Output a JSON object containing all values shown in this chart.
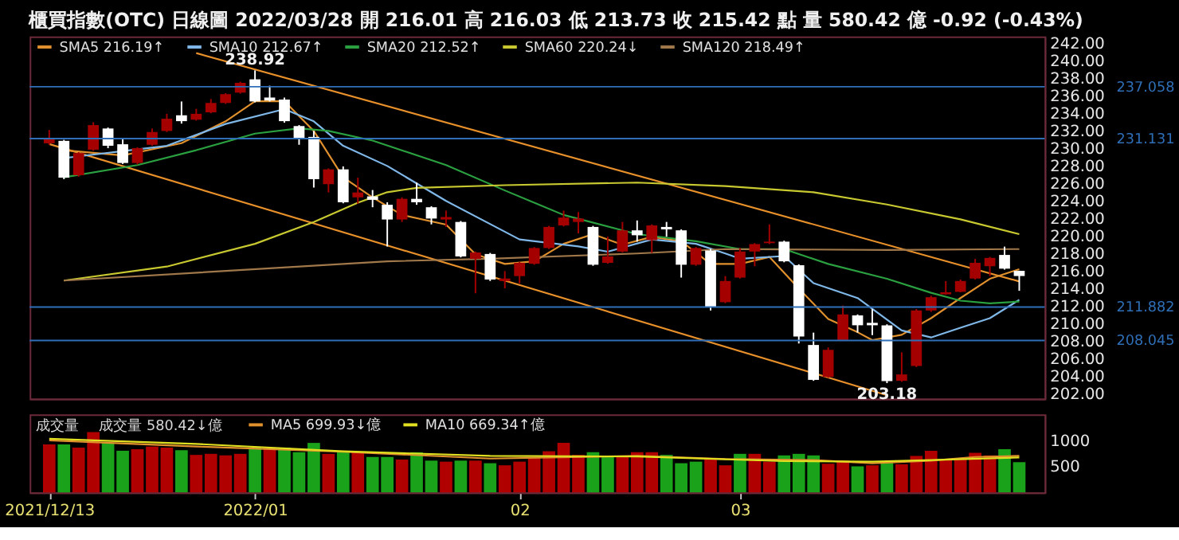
{
  "chart_data": [
    {
      "type": "candlestick",
      "title": "櫃買指數(OTC)  日線圖  2022/03/28  開 216.01  高 216.03  低 213.73  收 215.42 點  量 580.42 億  -0.92 (-0.43%)",
      "categories": [
        "2021/12/13",
        null,
        null,
        null,
        null,
        null,
        null,
        null,
        null,
        null,
        null,
        null,
        null,
        null,
        "2022/01",
        null,
        null,
        null,
        null,
        null,
        null,
        null,
        null,
        null,
        null,
        null,
        null,
        null,
        null,
        null,
        null,
        null,
        "02",
        null,
        null,
        null,
        null,
        null,
        null,
        null,
        null,
        null,
        null,
        null,
        null,
        null,
        null,
        "03",
        null,
        null,
        null,
        null,
        null,
        null,
        null,
        null,
        null,
        null,
        null,
        null,
        null,
        null,
        null,
        null,
        null,
        null,
        null
      ],
      "ohlc": [
        [
          230.59,
          232.11,
          230.42,
          231.15
        ],
        [
          230.87,
          230.98,
          226.49,
          226.66
        ],
        [
          226.94,
          229.58,
          226.77,
          229.47
        ],
        [
          229.86,
          233.0,
          229.75,
          232.67
        ],
        [
          232.28,
          232.39,
          230.03,
          230.31
        ],
        [
          230.48,
          231.15,
          228.23,
          228.34
        ],
        [
          228.34,
          230.14,
          228.17,
          230.03
        ],
        [
          230.42,
          232.28,
          230.31,
          231.88
        ],
        [
          232.0,
          233.96,
          231.88,
          233.4
        ],
        [
          233.79,
          235.37,
          232.84,
          233.12
        ],
        [
          233.29,
          234.53,
          233.18,
          233.96
        ],
        [
          234.13,
          235.65,
          234.02,
          235.2
        ],
        [
          235.2,
          236.32,
          235.09,
          236.21
        ],
        [
          236.38,
          237.62,
          236.27,
          237.5
        ],
        [
          237.9,
          238.92,
          235.26,
          235.37
        ],
        [
          235.82,
          237.17,
          235.37,
          235.48
        ],
        [
          235.59,
          235.82,
          232.95,
          233.12
        ],
        [
          232.56,
          232.67,
          230.42,
          231.15
        ],
        [
          231.32,
          232.0,
          225.53,
          226.49
        ],
        [
          225.92,
          227.72,
          224.97,
          227.61
        ],
        [
          227.61,
          227.95,
          223.73,
          223.85
        ],
        [
          224.41,
          226.66,
          223.68,
          224.97
        ],
        [
          224.52,
          225.25,
          223.28,
          224.13
        ],
        [
          223.56,
          223.85,
          218.79,
          221.88
        ],
        [
          221.88,
          224.41,
          221.6,
          224.24
        ],
        [
          224.24,
          226.09,
          223.56,
          223.85
        ],
        [
          223.28,
          223.4,
          221.32,
          221.99
        ],
        [
          221.88,
          222.89,
          221.03,
          222.16
        ],
        [
          221.6,
          221.71,
          217.55,
          217.66
        ],
        [
          217.38,
          218.22,
          213.45,
          218.11
        ],
        [
          217.94,
          218.06,
          214.85,
          215.02
        ],
        [
          214.85,
          215.98,
          214.01,
          215.13
        ],
        [
          215.41,
          217.04,
          214.57,
          216.93
        ],
        [
          216.82,
          218.73,
          216.71,
          218.62
        ],
        [
          218.62,
          221.15,
          218.5,
          221.03
        ],
        [
          221.2,
          222.89,
          221.09,
          222.1
        ],
        [
          221.6,
          222.72,
          220.3,
          221.99
        ],
        [
          221.03,
          221.15,
          216.59,
          216.71
        ],
        [
          216.93,
          219.91,
          216.82,
          217.66
        ],
        [
          218.22,
          221.6,
          218.11,
          220.64
        ],
        [
          220.64,
          221.77,
          219.35,
          220.08
        ],
        [
          219.52,
          221.32,
          218.06,
          221.2
        ],
        [
          221.03,
          221.6,
          219.91,
          220.75
        ],
        [
          220.64,
          220.75,
          215.24,
          216.71
        ],
        [
          216.71,
          218.73,
          216.59,
          218.62
        ],
        [
          218.34,
          218.5,
          211.48,
          211.87
        ],
        [
          212.43,
          215.41,
          212.32,
          214.85
        ],
        [
          215.24,
          218.62,
          215.13,
          218.22
        ],
        [
          218.22,
          219.18,
          216.54,
          219.07
        ],
        [
          219.18,
          221.32,
          219.07,
          219.35
        ],
        [
          219.35,
          219.46,
          216.99,
          217.1
        ],
        [
          216.65,
          216.76,
          207.71,
          208.5
        ],
        [
          207.54,
          208.95,
          203.44,
          203.55
        ],
        [
          203.89,
          207.26,
          203.78,
          206.98
        ],
        [
          208.11,
          212.04,
          208.0,
          211.03
        ],
        [
          210.92,
          211.03,
          208.95,
          209.79
        ],
        [
          210.07,
          211.65,
          208.67,
          209.79
        ],
        [
          209.79,
          209.9,
          203.18,
          203.4
        ],
        [
          203.44,
          206.7,
          203.33,
          204.17
        ],
        [
          205.13,
          211.65,
          205.01,
          211.48
        ],
        [
          211.48,
          213.17,
          211.31,
          213.0
        ],
        [
          213.33,
          214.85,
          213.28,
          213.56
        ],
        [
          213.61,
          215.02,
          213.56,
          214.85
        ],
        [
          215.13,
          217.38,
          215.02,
          216.93
        ],
        [
          216.54,
          217.6,
          215.41,
          217.49
        ],
        [
          217.83,
          218.78,
          216.15,
          216.26
        ],
        [
          216.01,
          216.03,
          213.73,
          215.42
        ]
      ],
      "colors": [
        "#a40000",
        "#ffffff",
        "#a40000",
        "#a40000",
        "#ffffff",
        "#ffffff",
        "#a40000",
        "#a40000",
        "#a40000",
        "#ffffff",
        "#a40000",
        "#a40000",
        "#a40000",
        "#a40000",
        "#ffffff",
        "#ffffff",
        "#ffffff",
        "#ffffff",
        "#ffffff",
        "#a40000",
        "#ffffff",
        "#a40000",
        "#ffffff",
        "#ffffff",
        "#a40000",
        "#ffffff",
        "#ffffff",
        "#a40000",
        "#ffffff",
        "#a40000",
        "#ffffff",
        "#a40000",
        "#a40000",
        "#a40000",
        "#a40000",
        "#a40000",
        "#a40000",
        "#ffffff",
        "#a40000",
        "#a40000",
        "#ffffff",
        "#a40000",
        "#ffffff",
        "#ffffff",
        "#a40000",
        "#ffffff",
        "#a40000",
        "#a40000",
        "#a40000",
        "#a40000",
        "#ffffff",
        "#ffffff",
        "#ffffff",
        "#a40000",
        "#a40000",
        "#ffffff",
        "#ffffff",
        "#ffffff",
        "#a40000",
        "#a40000",
        "#a40000",
        "#a40000",
        "#a40000",
        "#a40000",
        "#a40000",
        "#ffffff",
        "#ffffff"
      ],
      "series": [
        {
          "name": "SMA5 216.19↑",
          "color": "#e0902c",
          "type": "line",
          "values": [
            null,
            229.8,
            null,
            null,
            null,
            229.2,
            null,
            null,
            null,
            230.6,
            null,
            null,
            233.1,
            null,
            235.4,
            null,
            235.4,
            null,
            232.0,
            null,
            226.7,
            null,
            224.4,
            null,
            222.4,
            null,
            null,
            221.3,
            null,
            217.9,
            null,
            216.8,
            null,
            217.1,
            null,
            219.1,
            null,
            220.2,
            null,
            219.0,
            null,
            219.9,
            null,
            219.4,
            null,
            216.8,
            null,
            216.8,
            null,
            217.6,
            null,
            214.0,
            null,
            210.5,
            null,
            209.0,
            208.1,
            null,
            208.7,
            null,
            210.6,
            null,
            212.9,
            null,
            215.1,
            null,
            216.2
          ]
        },
        {
          "name": "SMA10 212.67↑",
          "color": "#7fb8e8",
          "type": "line",
          "values": [
            null,
            228.9,
            null,
            null,
            null,
            null,
            null,
            null,
            230.3,
            null,
            null,
            null,
            232.8,
            null,
            null,
            null,
            234.5,
            null,
            233.1,
            null,
            230.3,
            null,
            null,
            228.0,
            null,
            null,
            null,
            224.0,
            null,
            null,
            null,
            null,
            219.6,
            null,
            null,
            null,
            218.8,
            null,
            218.2,
            null,
            null,
            219.6,
            null,
            null,
            219.1,
            null,
            218.0,
            217.4,
            null,
            null,
            217.7,
            null,
            214.6,
            null,
            null,
            212.9,
            null,
            null,
            209.2,
            null,
            208.4,
            null,
            209.5,
            null,
            210.6,
            null,
            212.7
          ]
        },
        {
          "name": "SMA20 212.52↑",
          "color": "#2aa040",
          "type": "line",
          "values": [
            null,
            226.7,
            null,
            null,
            null,
            null,
            228.1,
            null,
            null,
            null,
            229.8,
            null,
            null,
            null,
            231.7,
            null,
            null,
            232.3,
            null,
            232.0,
            null,
            null,
            230.9,
            null,
            null,
            null,
            null,
            228.1,
            null,
            null,
            null,
            225.2,
            null,
            null,
            null,
            222.4,
            null,
            null,
            null,
            null,
            220.2,
            null,
            null,
            null,
            219.4,
            null,
            null,
            218.5,
            null,
            null,
            218.5,
            null,
            null,
            216.8,
            null,
            null,
            null,
            215.1,
            null,
            null,
            213.5,
            null,
            212.6,
            null,
            212.3,
            null,
            212.5
          ]
        },
        {
          "name": "SMA60 220.24↓",
          "color": "#c8c830",
          "type": "line",
          "values": [
            null,
            214.9,
            null,
            null,
            null,
            null,
            null,
            null,
            216.5,
            null,
            null,
            null,
            null,
            null,
            219.1,
            null,
            null,
            null,
            221.6,
            null,
            null,
            223.8,
            null,
            225.0,
            null,
            225.5,
            null,
            null,
            null,
            null,
            null,
            225.8,
            null,
            null,
            null,
            null,
            null,
            null,
            null,
            null,
            226.1,
            null,
            null,
            null,
            null,
            null,
            225.7,
            null,
            null,
            null,
            null,
            null,
            225.0,
            null,
            null,
            null,
            null,
            223.6,
            null,
            null,
            null,
            null,
            221.9,
            null,
            null,
            null,
            220.2
          ]
        },
        {
          "name": "SMA120 218.49↑",
          "color": "#a0784a",
          "type": "line",
          "values": [
            null,
            214.9,
            null,
            null,
            null,
            null,
            null,
            null,
            null,
            null,
            null,
            null,
            null,
            null,
            null,
            null,
            null,
            null,
            null,
            null,
            null,
            null,
            null,
            217.1,
            null,
            null,
            null,
            null,
            null,
            null,
            217.4,
            null,
            null,
            null,
            null,
            null,
            null,
            null,
            null,
            null,
            218.0,
            null,
            null,
            null,
            null,
            null,
            218.5,
            null,
            null,
            null,
            null,
            null,
            null,
            null,
            null,
            null,
            null,
            218.4,
            null,
            null,
            null,
            null,
            null,
            null,
            null,
            null,
            218.5
          ]
        },
        {
          "color": "#e8902a",
          "type": "line",
          "values": [
            null,
            null,
            null,
            null,
            null,
            null,
            null,
            null,
            null,
            null,
            240.9,
            null,
            null,
            null,
            null,
            null,
            null,
            null,
            null,
            null,
            null,
            null,
            null,
            null,
            null,
            null,
            null,
            null,
            null,
            null,
            null,
            null,
            null,
            null,
            null,
            null,
            null,
            null,
            null,
            null,
            null,
            null,
            null,
            null,
            null,
            null,
            null,
            null,
            null,
            null,
            null,
            null,
            null,
            null,
            null,
            null,
            null,
            null,
            null,
            null,
            null,
            null,
            null,
            null,
            null,
            null,
            214.8
          ]
        },
        {
          "color": "#e8902a",
          "type": "line",
          "values": [
            230.5,
            null,
            null,
            null,
            null,
            null,
            null,
            null,
            null,
            null,
            null,
            null,
            null,
            null,
            null,
            null,
            null,
            null,
            null,
            null,
            null,
            null,
            null,
            null,
            null,
            null,
            null,
            null,
            null,
            null,
            null,
            null,
            null,
            null,
            null,
            null,
            null,
            null,
            null,
            null,
            null,
            null,
            null,
            null,
            null,
            null,
            null,
            null,
            null,
            null,
            null,
            null,
            null,
            null,
            null,
            null,
            null,
            201.8,
            null,
            null,
            null,
            null,
            null,
            null,
            null,
            null,
            null
          ]
        }
      ],
      "ref_lines": [
        {
          "axis": "y",
          "value": 237.058,
          "label": "237.058",
          "color": "#2f6fb8"
        },
        {
          "axis": "y",
          "value": 231.131,
          "label": "231.131",
          "color": "#2f6fb8"
        },
        {
          "axis": "y",
          "value": 211.882,
          "label": "211.882",
          "color": "#2f6fb8"
        },
        {
          "axis": "y",
          "value": 208.045,
          "label": "208.045",
          "color": "#2f6fb8"
        }
      ],
      "annotations": [
        {
          "text": "238.92",
          "y": 238.92
        },
        {
          "text": "203.18",
          "y": 203.18
        }
      ],
      "ylim": [
        201.4,
        242.8
      ],
      "yticks": [
        {
          "value": 202,
          "label": "202.00"
        },
        {
          "value": 204,
          "label": "204.00"
        },
        {
          "value": 206,
          "label": "206.00"
        },
        {
          "value": 208,
          "label": "208.00"
        },
        {
          "value": 210,
          "label": "210.00"
        },
        {
          "value": 212,
          "label": "212.00"
        },
        {
          "value": 214,
          "label": "214.00"
        },
        {
          "value": 216,
          "label": "216.00"
        },
        {
          "value": 218,
          "label": "218.00"
        },
        {
          "value": 220,
          "label": "220.00"
        },
        {
          "value": 222,
          "label": "222.00"
        },
        {
          "value": 224,
          "label": "224.00"
        },
        {
          "value": 226,
          "label": "226.00"
        },
        {
          "value": 228,
          "label": "228.00"
        },
        {
          "value": 230,
          "label": "230.00"
        },
        {
          "value": 232,
          "label": "232.00"
        },
        {
          "value": 234,
          "label": "234.00"
        },
        {
          "value": 236,
          "label": "236.00"
        },
        {
          "value": 238,
          "label": "238.00"
        },
        {
          "value": 240,
          "label": "240.00"
        },
        {
          "value": 242,
          "label": "242.00"
        }
      ],
      "tick_labels": "y",
      "legend": "top left"
    },
    {
      "type": "bar",
      "title": "成交量",
      "categories": [
        "2021/12/13",
        null,
        null,
        null,
        null,
        null,
        null,
        null,
        null,
        null,
        null,
        null,
        null,
        null,
        "2022/01",
        null,
        null,
        null,
        null,
        null,
        null,
        null,
        null,
        null,
        null,
        null,
        null,
        null,
        null,
        null,
        null,
        null,
        "02",
        null,
        null,
        null,
        null,
        null,
        null,
        null,
        null,
        null,
        null,
        null,
        null,
        null,
        null,
        "03",
        null,
        null,
        null,
        null,
        null,
        null,
        null,
        null,
        null,
        null,
        null,
        null,
        null,
        null,
        null,
        null,
        null,
        null,
        null
      ],
      "series": [
        {
          "name": "成交量 580.42↓億",
          "type": "bar",
          "values": [
            920,
            920,
            860,
            1160,
            950,
            800,
            830,
            880,
            860,
            810,
            720,
            740,
            710,
            740,
            860,
            860,
            860,
            770,
            950,
            740,
            770,
            770,
            680,
            680,
            630,
            770,
            610,
            590,
            610,
            610,
            560,
            520,
            590,
            670,
            790,
            950,
            720,
            770,
            680,
            680,
            770,
            770,
            720,
            560,
            590,
            630,
            520,
            740,
            740,
            590,
            710,
            740,
            710,
            550,
            610,
            500,
            520,
            580,
            540,
            700,
            800,
            630,
            630,
            760,
            710,
            830,
            580
          ],
          "colors": [
            "#b00000",
            "#1aa31a",
            "#b00000",
            "#b00000",
            "#1aa31a",
            "#1aa31a",
            "#b00000",
            "#b00000",
            "#b00000",
            "#1aa31a",
            "#b00000",
            "#b00000",
            "#b00000",
            "#b00000",
            "#1aa31a",
            "#b00000",
            "#1aa31a",
            "#1aa31a",
            "#1aa31a",
            "#b00000",
            "#1aa31a",
            "#b00000",
            "#1aa31a",
            "#1aa31a",
            "#b00000",
            "#1aa31a",
            "#1aa31a",
            "#b00000",
            "#1aa31a",
            "#b00000",
            "#1aa31a",
            "#b00000",
            "#b00000",
            "#b00000",
            "#b00000",
            "#b00000",
            "#b00000",
            "#1aa31a",
            "#1aa31a",
            "#b00000",
            "#b00000",
            "#b00000",
            "#1aa31a",
            "#1aa31a",
            "#1aa31a",
            "#b00000",
            "#b00000",
            "#1aa31a",
            "#b00000",
            "#b00000",
            "#1aa31a",
            "#1aa31a",
            "#1aa31a",
            "#b00000",
            "#b00000",
            "#1aa31a",
            "#b00000",
            "#1aa31a",
            "#b00000",
            "#b00000",
            "#b00000",
            "#b00000",
            "#b00000",
            "#b00000",
            "#b00000",
            "#1aa31a",
            "#1aa31a"
          ]
        },
        {
          "name": "MA5 699.93↓億",
          "color": "#e0902c",
          "type": "line",
          "values": [
            1000,
            null,
            null,
            null,
            null,
            null,
            null,
            null,
            null,
            null,
            880,
            null,
            null,
            null,
            null,
            null,
            null,
            null,
            null,
            null,
            780,
            null,
            null,
            null,
            null,
            null,
            null,
            null,
            null,
            null,
            650,
            null,
            null,
            null,
            null,
            null,
            null,
            null,
            null,
            null,
            700,
            null,
            null,
            null,
            null,
            null,
            640,
            null,
            null,
            null,
            null,
            null,
            620,
            null,
            null,
            null,
            560,
            null,
            null,
            null,
            610,
            null,
            null,
            680,
            null,
            null,
            700
          ]
        },
        {
          "name": "MA10 669.34↑億",
          "color": "#e0e020",
          "type": "line",
          "values": [
            1030,
            null,
            null,
            null,
            null,
            null,
            null,
            null,
            null,
            null,
            930,
            null,
            null,
            null,
            null,
            null,
            null,
            null,
            null,
            null,
            790,
            null,
            null,
            null,
            null,
            null,
            null,
            null,
            null,
            null,
            700,
            null,
            null,
            null,
            null,
            null,
            null,
            null,
            null,
            null,
            690,
            null,
            null,
            null,
            null,
            null,
            null,
            null,
            null,
            null,
            600,
            null,
            null,
            null,
            null,
            null,
            590,
            null,
            null,
            null,
            620,
            null,
            null,
            null,
            null,
            null,
            670
          ]
        }
      ],
      "ylim": [
        0,
        1500
      ],
      "yticks": [
        500,
        1000
      ],
      "legend": "top left"
    }
  ]
}
